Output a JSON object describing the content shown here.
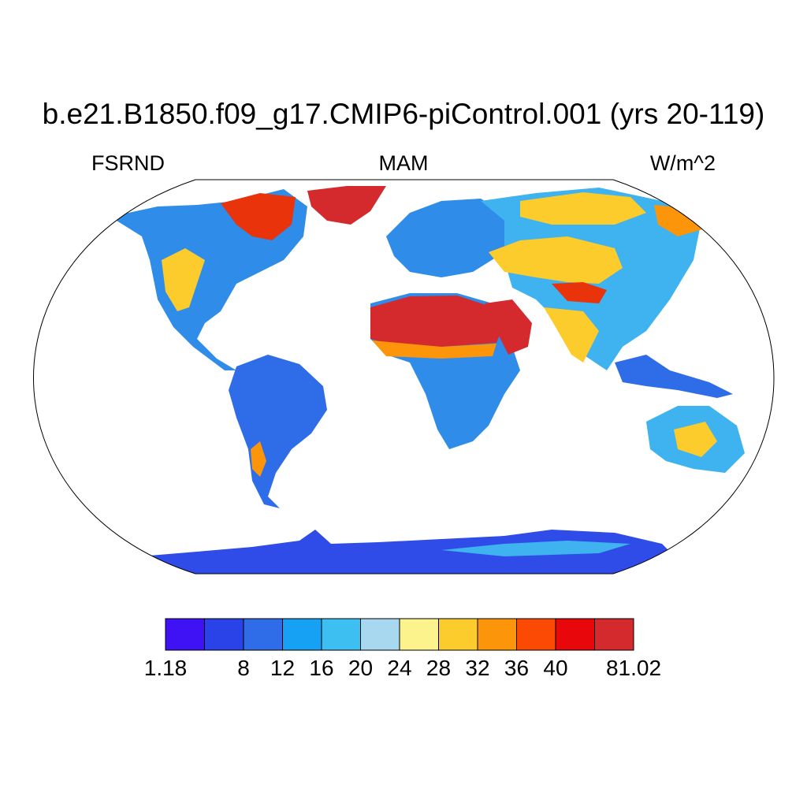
{
  "title": "b.e21.B1850.f09_g17.CMIP6-piControl.001 (yrs 20-119)",
  "left_label": "FSRND",
  "center_label": "MAM",
  "right_label": "W/m^2",
  "colorbar": {
    "colors": [
      "#3f12f5",
      "#2a43e8",
      "#2f6ce8",
      "#17a1f5",
      "#3ebff2",
      "#a8d8f0",
      "#fdf38d",
      "#fccb2c",
      "#fc9509",
      "#fc4a05",
      "#e8070b",
      "#d42a2e"
    ],
    "labels": [
      "1.18",
      "8",
      "12",
      "16",
      "20",
      "24",
      "28",
      "32",
      "36",
      "40",
      "81.02"
    ],
    "label_boundaries": [
      0,
      2,
      3,
      4,
      5,
      6,
      7,
      8,
      9,
      10,
      12
    ]
  }
}
